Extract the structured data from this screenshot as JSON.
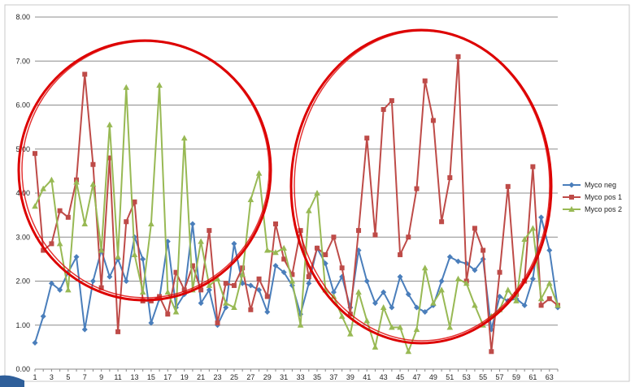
{
  "chart_data": {
    "type": "line",
    "ylim": [
      0,
      8
    ],
    "yticks": [
      "0.00",
      "1.00",
      "2.00",
      "3.00",
      "4.00",
      "5.00",
      "6.00",
      "7.00",
      "8.00"
    ],
    "x": [
      1,
      2,
      3,
      4,
      5,
      6,
      7,
      8,
      9,
      10,
      11,
      12,
      13,
      14,
      15,
      16,
      17,
      18,
      19,
      20,
      21,
      22,
      23,
      24,
      25,
      26,
      27,
      28,
      29,
      30,
      31,
      32,
      33,
      34,
      35,
      36,
      37,
      38,
      39,
      40,
      41,
      42,
      43,
      44,
      45,
      46,
      47,
      48,
      49,
      50,
      51,
      52,
      53,
      54,
      55,
      56,
      57,
      58,
      59,
      60,
      61,
      62,
      63,
      64
    ],
    "xticks": [
      "1",
      "3",
      "5",
      "7",
      "9",
      "11",
      "13",
      "15",
      "17",
      "19",
      "21",
      "23",
      "25",
      "27",
      "29",
      "31",
      "33",
      "35",
      "37",
      "39",
      "41",
      "43",
      "45",
      "47",
      "49",
      "51",
      "53",
      "55",
      "57",
      "59",
      "61",
      "63"
    ],
    "grid": "horizontal",
    "legend_position": "right",
    "series": [
      {
        "name": "Myco neg",
        "color": "#4a7ebb",
        "marker": "diamond",
        "values": [
          0.6,
          1.2,
          1.95,
          1.8,
          2.2,
          2.55,
          0.9,
          2.0,
          2.7,
          2.1,
          2.5,
          2.0,
          3.0,
          2.5,
          1.05,
          1.6,
          2.9,
          1.4,
          1.7,
          3.3,
          1.5,
          1.8,
          1.0,
          1.4,
          2.85,
          1.95,
          1.9,
          1.8,
          1.3,
          2.35,
          2.2,
          1.9,
          1.25,
          1.95,
          2.75,
          2.4,
          1.75,
          2.1,
          1.4,
          2.7,
          2.0,
          1.5,
          1.75,
          1.4,
          2.1,
          1.7,
          1.4,
          1.3,
          1.45,
          2.0,
          2.55,
          2.45,
          2.4,
          2.25,
          2.5,
          0.9,
          1.65,
          1.55,
          1.6,
          1.45,
          2.05,
          3.45,
          2.7,
          1.4
        ]
      },
      {
        "name": "Myco pos 1",
        "color": "#be4b48",
        "marker": "square",
        "values": [
          4.9,
          2.7,
          2.85,
          3.6,
          3.45,
          4.3,
          6.7,
          4.65,
          1.85,
          4.8,
          0.85,
          3.35,
          3.8,
          1.55,
          1.55,
          1.65,
          1.25,
          2.2,
          1.8,
          2.35,
          1.8,
          3.15,
          1.05,
          1.95,
          1.9,
          2.3,
          1.35,
          2.05,
          1.65,
          3.3,
          2.5,
          2.15,
          3.15,
          2.1,
          2.75,
          2.6,
          3.0,
          2.3,
          1.25,
          3.15,
          5.25,
          3.05,
          5.9,
          6.1,
          2.6,
          3.0,
          4.1,
          6.55,
          5.65,
          3.35,
          4.35,
          7.1,
          2.0,
          3.2,
          2.7,
          0.4,
          2.2,
          4.15,
          1.7,
          2.0,
          4.6,
          1.45,
          1.6,
          1.45
        ]
      },
      {
        "name": "Myco pos 2",
        "color": "#98b954",
        "marker": "triangle",
        "values": [
          3.7,
          4.1,
          4.3,
          2.85,
          1.8,
          4.25,
          3.3,
          4.2,
          2.7,
          5.55,
          2.55,
          6.4,
          2.6,
          1.75,
          3.3,
          6.45,
          1.75,
          1.3,
          5.25,
          1.8,
          2.9,
          1.9,
          2.05,
          1.5,
          1.4,
          2.15,
          3.85,
          4.45,
          2.7,
          2.65,
          2.75,
          2.0,
          1.0,
          3.6,
          4.0,
          1.8,
          1.65,
          1.2,
          0.8,
          1.75,
          1.1,
          0.5,
          1.4,
          0.95,
          0.95,
          0.4,
          0.9,
          2.3,
          1.5,
          1.8,
          0.95,
          2.05,
          1.95,
          1.45,
          1.0,
          1.2,
          1.35,
          1.8,
          1.55,
          2.95,
          3.2,
          1.6,
          1.95,
          1.45
        ]
      }
    ],
    "annotations": [
      {
        "shape": "circle",
        "color": "#dd0000",
        "covers_x": [
          1,
          21
        ]
      },
      {
        "shape": "circle",
        "color": "#dd0000",
        "covers_x": [
          37,
          60
        ]
      }
    ]
  }
}
